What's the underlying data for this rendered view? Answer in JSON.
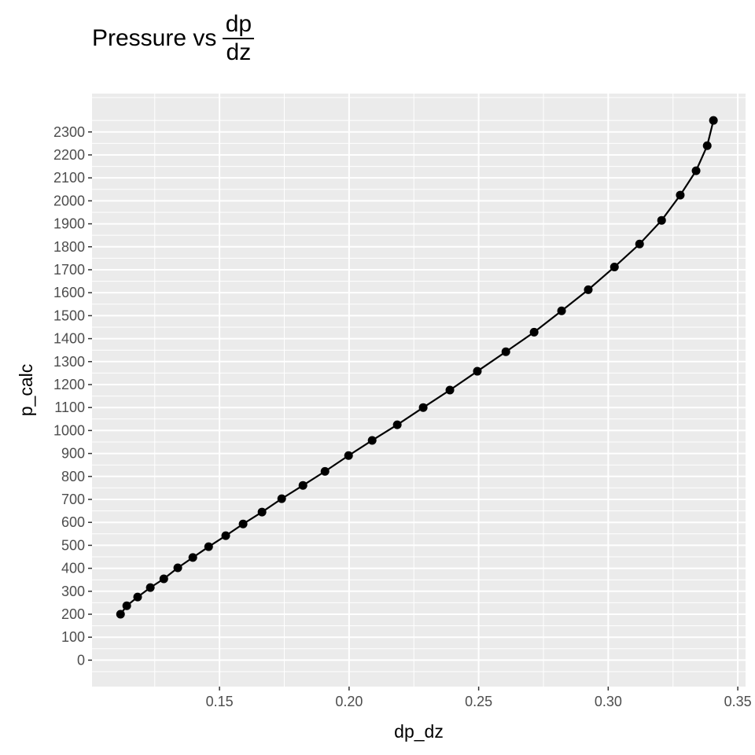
{
  "chart_data": {
    "type": "line",
    "title": "Pressure vs",
    "title_fraction": {
      "numerator": "dp",
      "denominator": "dz"
    },
    "xlabel": "dp_dz",
    "ylabel": "p_calc",
    "xlim": [
      0.1008,
      0.353
    ],
    "ylim": [
      -115,
      2467
    ],
    "x_ticks": [
      0.15,
      0.2,
      0.25,
      0.3,
      0.35
    ],
    "x_tick_labels": [
      "0.15",
      "0.20",
      "0.25",
      "0.30",
      "0.35"
    ],
    "y_ticks": [
      0,
      100,
      200,
      300,
      400,
      500,
      600,
      700,
      800,
      900,
      1000,
      1100,
      1200,
      1300,
      1400,
      1500,
      1600,
      1700,
      1800,
      1900,
      2000,
      2100,
      2200,
      2300
    ],
    "grid": true,
    "series": [
      {
        "name": "p_calc",
        "markers": true,
        "x": [
          0.1118,
          0.1142,
          0.1184,
          0.1233,
          0.1285,
          0.1339,
          0.1397,
          0.1458,
          0.1524,
          0.1591,
          0.1664,
          0.174,
          0.1822,
          0.1907,
          0.1998,
          0.2089,
          0.2186,
          0.2286,
          0.2389,
          0.2495,
          0.2605,
          0.2714,
          0.282,
          0.2923,
          0.3024,
          0.3121,
          0.3206,
          0.3278,
          0.3339,
          0.3382,
          0.3406
        ],
        "y": [
          200,
          237,
          275,
          316,
          354,
          402,
          447,
          494,
          542,
          593,
          645,
          703,
          761,
          822,
          891,
          957,
          1025,
          1100,
          1176,
          1258,
          1343,
          1428,
          1521,
          1613,
          1712,
          1812,
          1915,
          2025,
          2131,
          2240,
          2350
        ]
      }
    ]
  }
}
